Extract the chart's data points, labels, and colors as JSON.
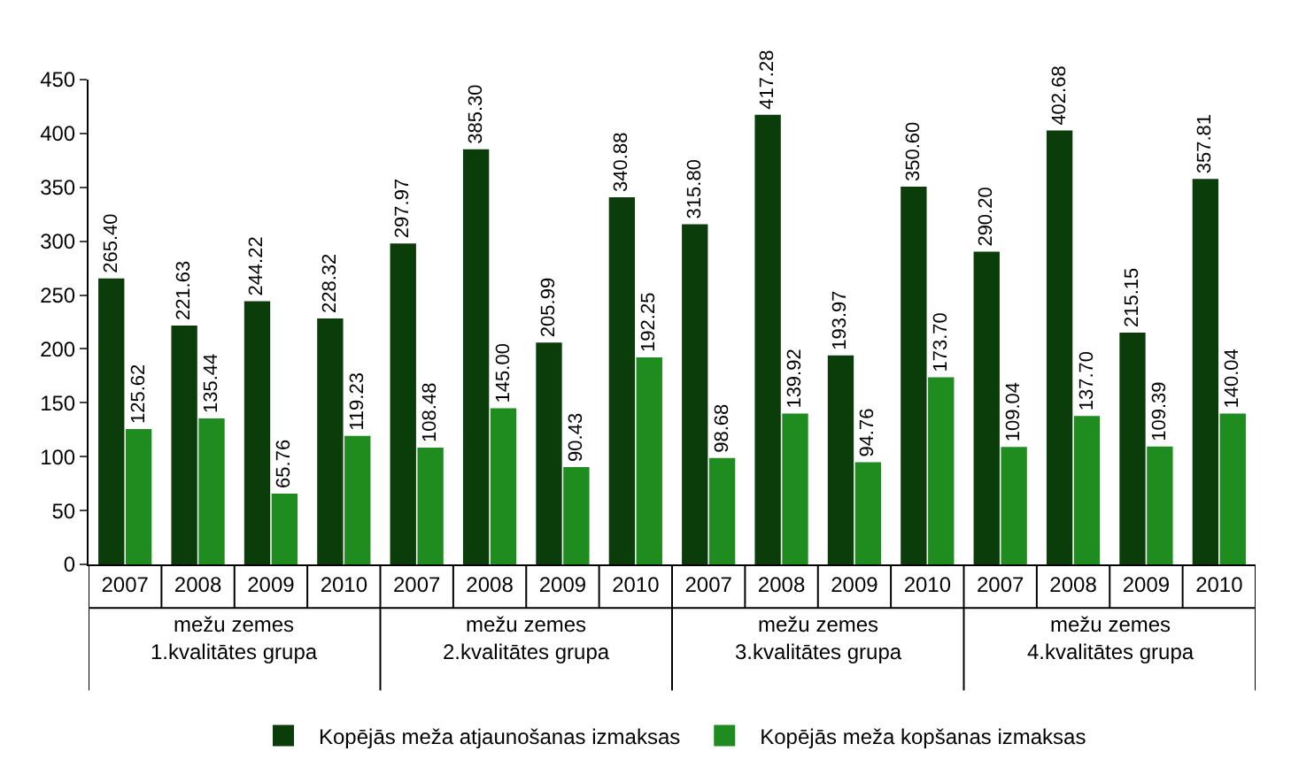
{
  "chart_data": {
    "type": "bar",
    "categories": [
      "2007",
      "2008",
      "2009",
      "2010",
      "2007",
      "2008",
      "2009",
      "2010",
      "2007",
      "2008",
      "2009",
      "2010",
      "2007",
      "2008",
      "2009",
      "2010"
    ],
    "series": [
      {
        "name": "Kopējās meža atjaunošanas izmaksas",
        "color": "#0b3d0b",
        "values": [
          265.4,
          221.63,
          244.22,
          228.32,
          297.97,
          385.3,
          205.99,
          340.88,
          315.8,
          417.28,
          193.97,
          350.6,
          290.2,
          402.68,
          215.15,
          357.81
        ],
        "value_labels": [
          "265.40",
          "221.63",
          "244.22",
          "228.32",
          "297.97",
          "385.30",
          "205.99",
          "340.88",
          "315.80",
          "417.28",
          "193.97",
          "350.60",
          "290.20",
          "402.68",
          "215.15",
          "357.81"
        ]
      },
      {
        "name": "Kopējās meža kopšanas izmaksas",
        "color": "#1e8c1e",
        "values": [
          125.62,
          135.44,
          65.76,
          119.23,
          108.48,
          145.0,
          90.43,
          192.25,
          98.68,
          139.92,
          94.76,
          173.7,
          109.04,
          137.7,
          109.39,
          140.04
        ],
        "value_labels": [
          "125.62",
          "135.44",
          "65.76",
          "119.23",
          "108.48",
          "145.00",
          "90.43",
          "192.25",
          "98.68",
          "139.92",
          "94.76",
          "173.70",
          "109.04",
          "137.70",
          "109.39",
          "140.04"
        ]
      }
    ],
    "annotations": [
      "mežu zemes\n1.kvalitātes grupa",
      "mežu zemes\n2.kvalitātes grupa",
      "mežu zemes\n3.kvalitātes grupa",
      "mežu zemes\n4.kvalitātes grupa"
    ],
    "ylim": [
      0,
      450
    ],
    "yticks": [
      0,
      50,
      100,
      150,
      200,
      250,
      300,
      350,
      400,
      450
    ],
    "grid": false,
    "legend": "bottom"
  }
}
